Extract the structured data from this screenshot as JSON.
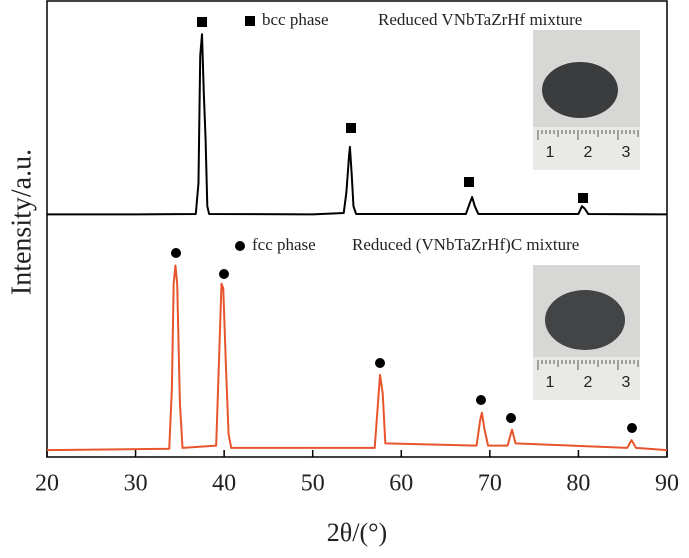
{
  "chart_data": {
    "type": "line",
    "x_label": "2θ/(°)",
    "y_label": "Intensity/a.u.",
    "xlim": [
      20,
      90
    ],
    "xticks": [
      20,
      30,
      40,
      50,
      60,
      70,
      80,
      90
    ],
    "ylim": [
      0,
      100
    ],
    "series": [
      {
        "name": "Reduced VNbTaZrHf mixture",
        "marker_label": "bcc phase",
        "color": "#000000",
        "x": [
          20,
          30,
          36.8,
          37.1,
          37.3,
          37.5,
          37.7,
          37.9,
          38.1,
          38.3,
          50,
          53.5,
          53.8,
          54.1,
          54.2,
          54.4,
          54.6,
          54.9,
          67.3,
          67.7,
          68,
          68.3,
          68.7,
          80,
          80.4,
          80.7,
          81.1,
          90
        ],
        "values": [
          53.2,
          53.2,
          53.3,
          60,
          88,
          92.7,
          80,
          70,
          55,
          53.3,
          53.2,
          53.5,
          58,
          66,
          68,
          62,
          55,
          53.3,
          53.3,
          55.5,
          57,
          55,
          53.3,
          53.3,
          55,
          54.5,
          53.3,
          53.2
        ]
      },
      {
        "name": "Reduced (VNbTaZrHf)C mixture",
        "marker_label": "fcc phase",
        "color": "#e8552c",
        "x": [
          20,
          33.8,
          34.1,
          34.3,
          34.5,
          34.7,
          35,
          35.3,
          39.1,
          39.4,
          39.7,
          39.9,
          40.2,
          40.5,
          40.8,
          57,
          57.3,
          57.6,
          57.9,
          58.2,
          68.5,
          68.9,
          69.1,
          69.4,
          69.8,
          72,
          72.5,
          72.9,
          85.5,
          86,
          86.5,
          90
        ],
        "values": [
          1.5,
          1.8,
          15,
          38,
          42,
          38,
          12,
          2,
          2.5,
          20,
          38,
          37,
          20,
          5,
          2,
          2,
          10,
          18,
          14,
          3,
          2.5,
          8,
          9.7,
          6,
          2.5,
          2.5,
          6,
          3,
          2,
          3.7,
          2,
          1.5
        ]
      }
    ],
    "inset_ruler_labels": [
      "1",
      "2",
      "3"
    ]
  }
}
